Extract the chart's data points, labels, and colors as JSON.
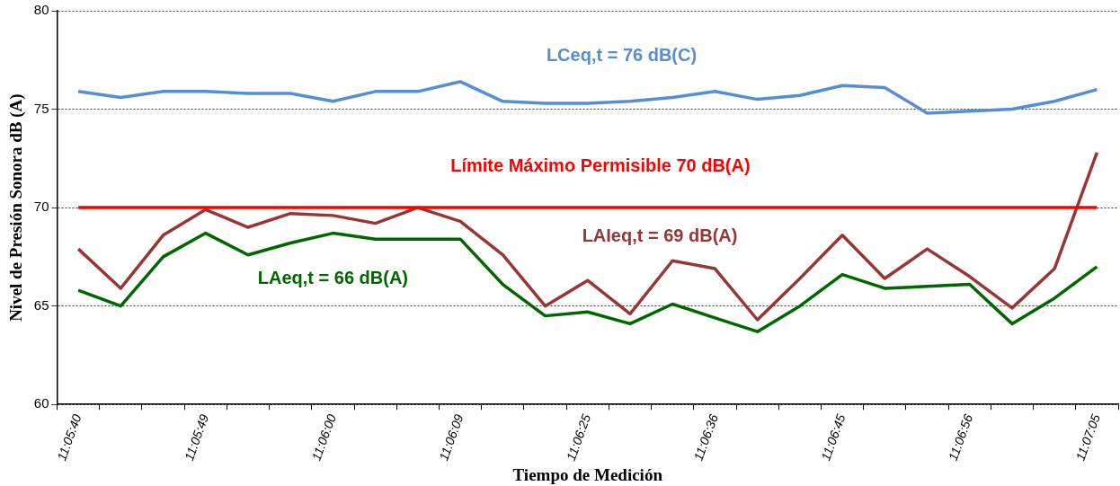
{
  "chart_data": {
    "type": "line",
    "xlabel": "Tiempo de Medición",
    "ylabel": "Nivel de Presión Sonora dB (A)",
    "categories": [
      "11:05:40",
      null,
      null,
      "11:05:49",
      null,
      null,
      "11:06:00",
      null,
      null,
      "11:06:09",
      null,
      null,
      "11:06:25",
      null,
      null,
      "11:06:36",
      null,
      null,
      "11:06:45",
      null,
      null,
      "11:06:56",
      null,
      null,
      "11:07:05"
    ],
    "series": [
      {
        "name": "LCeq,t = 76 dB(C)",
        "color": "#558ed5",
        "values": [
          75.9,
          75.6,
          75.9,
          75.9,
          75.8,
          75.8,
          75.4,
          75.9,
          75.9,
          76.4,
          75.4,
          75.3,
          75.3,
          75.4,
          75.6,
          75.9,
          75.5,
          75.7,
          76.2,
          76.1,
          74.8,
          74.9,
          75.0,
          75.4,
          76.0
        ]
      },
      {
        "name": "LAIeq,t = 69 dB(A)",
        "color": "#953735",
        "values": [
          67.9,
          65.9,
          68.6,
          69.9,
          69.0,
          69.7,
          69.6,
          69.2,
          70.0,
          69.3,
          67.6,
          65.0,
          66.3,
          64.6,
          67.3,
          66.9,
          64.3,
          66.4,
          68.6,
          66.4,
          67.9,
          66.5,
          64.9,
          66.9,
          72.8
        ]
      },
      {
        "name": "LAeq,t = 66 dB(A)",
        "color": "#006600",
        "values": [
          65.8,
          65.0,
          67.5,
          68.7,
          67.6,
          68.2,
          68.7,
          68.4,
          68.4,
          68.4,
          66.1,
          64.5,
          64.7,
          64.1,
          65.1,
          64.4,
          63.7,
          65.0,
          66.6,
          65.9,
          66.0,
          66.1,
          64.1,
          65.4,
          67.0
        ]
      }
    ],
    "ref_lines": [
      {
        "axis": "y",
        "value": 70,
        "label": "Límite Máximo Permisible 70 dB(A)",
        "color": "#ff0000"
      }
    ],
    "ylim": [
      60,
      80
    ],
    "yticks": [
      60,
      65,
      70,
      75,
      80
    ],
    "grid": "y",
    "legend": false,
    "marker": "none",
    "line_style": "solid"
  }
}
